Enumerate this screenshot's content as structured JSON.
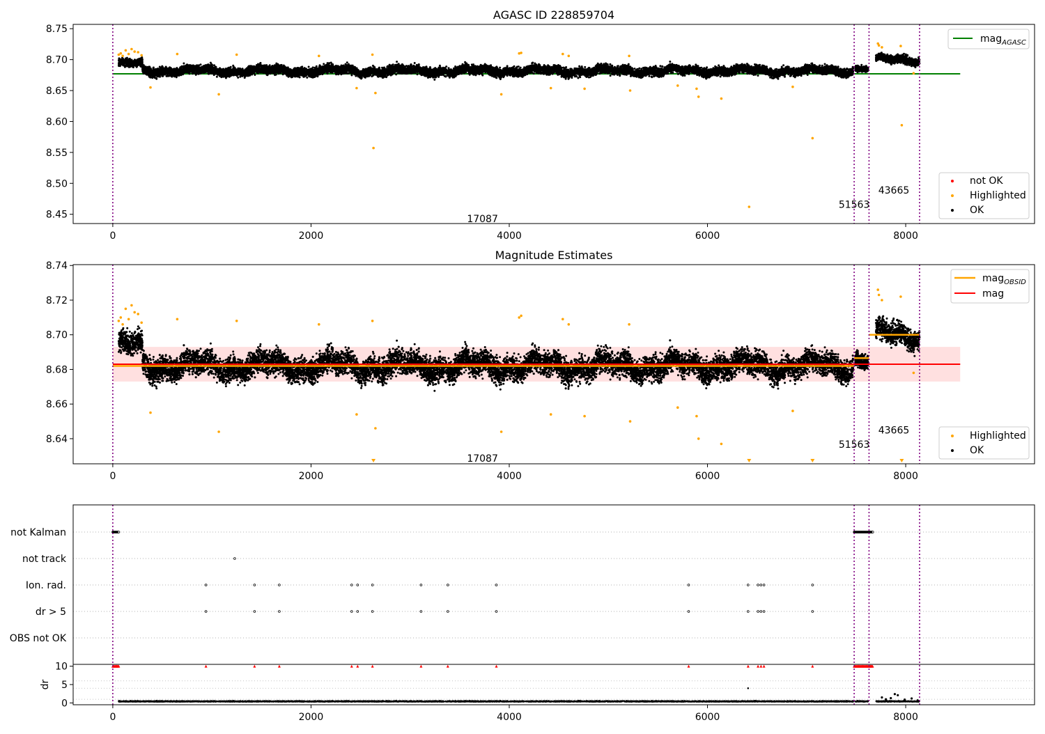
{
  "chart_data": [
    {
      "type": "scatter",
      "title": "AGASC ID 228859704",
      "xlim": [
        -400,
        9300
      ],
      "ylim": [
        8.435,
        8.757
      ],
      "x_ticks": [
        0,
        2000,
        4000,
        6000,
        8000
      ],
      "y_ticks": [
        8.45,
        8.5,
        8.55,
        8.6,
        8.65,
        8.7,
        8.75
      ],
      "y_tick_labels": [
        "8.45",
        "8.50",
        "8.55",
        "8.60",
        "8.65",
        "8.70",
        "8.75"
      ],
      "legend_upper": {
        "position": "upper right",
        "entries": [
          {
            "label": "mag",
            "subscript": "AGASC",
            "color": "#008000"
          }
        ]
      },
      "legend_lower": {
        "position": "lower right",
        "entries": [
          {
            "label": "not OK",
            "color": "#ff0000"
          },
          {
            "label": "Highlighted",
            "color": "#ffa500"
          },
          {
            "label": "OK",
            "color": "#000000"
          }
        ]
      },
      "reference_line": {
        "name": "mag AGASC",
        "y": 8.677,
        "x_range": [
          0,
          8550
        ],
        "color": "#008000"
      },
      "obsid_boundaries": [
        0,
        7480,
        7630,
        8140
      ],
      "obsid_labels": [
        {
          "text": "17087",
          "x": 3730,
          "y": 8.443
        },
        {
          "text": "51563",
          "x": 7480,
          "y": 8.466
        },
        {
          "text": "43665",
          "x": 7880,
          "y": 8.489
        }
      ],
      "ok_segments": [
        {
          "x_start": 60,
          "x_end": 300,
          "center": 8.693,
          "spread": 0.008
        },
        {
          "x_start": 300,
          "x_end": 7470,
          "center": 8.682,
          "spread": 0.009
        },
        {
          "x_start": 7490,
          "x_end": 7620,
          "center": 8.686,
          "spread": 0.006
        },
        {
          "x_start": 7700,
          "x_end": 8140,
          "center": 8.7,
          "spread": 0.008
        }
      ],
      "highlighted_points": [
        {
          "x": 60,
          "y": 8.708
        },
        {
          "x": 80,
          "y": 8.71
        },
        {
          "x": 100,
          "y": 8.706
        },
        {
          "x": 130,
          "y": 8.715
        },
        {
          "x": 160,
          "y": 8.709
        },
        {
          "x": 190,
          "y": 8.717
        },
        {
          "x": 220,
          "y": 8.713
        },
        {
          "x": 255,
          "y": 8.712
        },
        {
          "x": 290,
          "y": 8.707
        },
        {
          "x": 380,
          "y": 8.655
        },
        {
          "x": 650,
          "y": 8.709
        },
        {
          "x": 1070,
          "y": 8.644
        },
        {
          "x": 1250,
          "y": 8.708
        },
        {
          "x": 2080,
          "y": 8.706
        },
        {
          "x": 2460,
          "y": 8.654
        },
        {
          "x": 2620,
          "y": 8.708
        },
        {
          "x": 2630,
          "y": 8.557
        },
        {
          "x": 2650,
          "y": 8.646
        },
        {
          "x": 3920,
          "y": 8.644
        },
        {
          "x": 4100,
          "y": 8.71
        },
        {
          "x": 4120,
          "y": 8.711
        },
        {
          "x": 4420,
          "y": 8.654
        },
        {
          "x": 4540,
          "y": 8.709
        },
        {
          "x": 4600,
          "y": 8.706
        },
        {
          "x": 4760,
          "y": 8.653
        },
        {
          "x": 5210,
          "y": 8.706
        },
        {
          "x": 5220,
          "y": 8.65
        },
        {
          "x": 5700,
          "y": 8.658
        },
        {
          "x": 5890,
          "y": 8.653
        },
        {
          "x": 5910,
          "y": 8.64
        },
        {
          "x": 6140,
          "y": 8.637
        },
        {
          "x": 6420,
          "y": 8.462
        },
        {
          "x": 6860,
          "y": 8.656
        },
        {
          "x": 7060,
          "y": 8.573
        },
        {
          "x": 7720,
          "y": 8.726
        },
        {
          "x": 7730,
          "y": 8.723
        },
        {
          "x": 7760,
          "y": 8.72
        },
        {
          "x": 7950,
          "y": 8.722
        },
        {
          "x": 7960,
          "y": 8.594
        },
        {
          "x": 8080,
          "y": 8.678
        }
      ]
    },
    {
      "type": "scatter",
      "title": "Magnitude Estimates",
      "xlim": [
        -400,
        9300
      ],
      "ylim": [
        8.6255,
        8.7405
      ],
      "x_ticks": [
        0,
        2000,
        4000,
        6000,
        8000
      ],
      "y_ticks": [
        8.64,
        8.66,
        8.68,
        8.7,
        8.72,
        8.74
      ],
      "y_tick_labels": [
        "8.64",
        "8.66",
        "8.68",
        "8.70",
        "8.72",
        "8.74"
      ],
      "legend_upper": {
        "position": "upper right",
        "entries": [
          {
            "label": "mag",
            "subscript": "OBSID",
            "color": "#ffa500"
          },
          {
            "label": "mag",
            "color": "#ff0000"
          }
        ]
      },
      "legend_lower": {
        "position": "lower right",
        "entries": [
          {
            "label": "Highlighted",
            "color": "#ffa500"
          },
          {
            "label": "OK",
            "color": "#000000"
          }
        ]
      },
      "mag_line": {
        "y": 8.683,
        "band": [
          8.673,
          8.693
        ],
        "x_range": [
          0,
          8550
        ],
        "color": "#ff0000"
      },
      "obsid_mag_segments": [
        {
          "x_start": 0,
          "x_end": 7480,
          "y": 8.682
        },
        {
          "x_start": 7480,
          "x_end": 7630,
          "y": 8.6865
        },
        {
          "x_start": 7630,
          "x_end": 8140,
          "y": 8.7
        }
      ],
      "obsid_boundaries": [
        0,
        7480,
        7630,
        8140
      ],
      "obsid_labels": [
        {
          "text": "17087",
          "x": 3730,
          "y": 8.6287
        },
        {
          "text": "51563",
          "x": 7480,
          "y": 8.6368
        },
        {
          "text": "43665",
          "x": 7880,
          "y": 8.6451
        }
      ],
      "ok_segments": [
        {
          "x_start": 60,
          "x_end": 300,
          "center": 8.693,
          "spread": 0.008
        },
        {
          "x_start": 300,
          "x_end": 7470,
          "center": 8.682,
          "spread": 0.009
        },
        {
          "x_start": 7490,
          "x_end": 7620,
          "center": 8.686,
          "spread": 0.006
        },
        {
          "x_start": 7700,
          "x_end": 8140,
          "center": 8.7,
          "spread": 0.008
        }
      ],
      "highlighted_points": [
        {
          "x": 60,
          "y": 8.708
        },
        {
          "x": 80,
          "y": 8.71
        },
        {
          "x": 100,
          "y": 8.706
        },
        {
          "x": 130,
          "y": 8.715
        },
        {
          "x": 160,
          "y": 8.709
        },
        {
          "x": 190,
          "y": 8.717
        },
        {
          "x": 220,
          "y": 8.713
        },
        {
          "x": 255,
          "y": 8.712
        },
        {
          "x": 290,
          "y": 8.707
        },
        {
          "x": 380,
          "y": 8.655
        },
        {
          "x": 650,
          "y": 8.709
        },
        {
          "x": 1070,
          "y": 8.644
        },
        {
          "x": 1250,
          "y": 8.708
        },
        {
          "x": 2080,
          "y": 8.706
        },
        {
          "x": 2460,
          "y": 8.654
        },
        {
          "x": 2620,
          "y": 8.708
        },
        {
          "x": 2650,
          "y": 8.646
        },
        {
          "x": 3920,
          "y": 8.644
        },
        {
          "x": 4100,
          "y": 8.71
        },
        {
          "x": 4120,
          "y": 8.711
        },
        {
          "x": 4420,
          "y": 8.654
        },
        {
          "x": 4540,
          "y": 8.709
        },
        {
          "x": 4600,
          "y": 8.706
        },
        {
          "x": 4760,
          "y": 8.653
        },
        {
          "x": 5210,
          "y": 8.706
        },
        {
          "x": 5220,
          "y": 8.65
        },
        {
          "x": 5700,
          "y": 8.658
        },
        {
          "x": 5890,
          "y": 8.653
        },
        {
          "x": 5910,
          "y": 8.64
        },
        {
          "x": 6140,
          "y": 8.637
        },
        {
          "x": 6860,
          "y": 8.656
        },
        {
          "x": 7720,
          "y": 8.726
        },
        {
          "x": 7730,
          "y": 8.723
        },
        {
          "x": 7760,
          "y": 8.72
        },
        {
          "x": 7950,
          "y": 8.722
        },
        {
          "x": 8080,
          "y": 8.678
        }
      ],
      "offscale_markers": [
        2630,
        6420,
        7060,
        7960
      ]
    },
    {
      "type": "scatter",
      "title": "",
      "xlim": [
        -400,
        9300
      ],
      "x_ticks": [
        0,
        2000,
        4000,
        6000,
        8000
      ],
      "flag_rows": [
        "not Kalman",
        "not track",
        "Ion. rad.",
        "dr > 5",
        "OBS not OK"
      ],
      "flag_points": {
        "not Kalman": [
          {
            "x_start": 0,
            "x_end": 60
          },
          {
            "x_start": 7480,
            "x_end": 7670
          }
        ],
        "not track": [
          1230
        ],
        "Ion. rad.": [
          940,
          1430,
          1680,
          2410,
          2470,
          2620,
          3110,
          3380,
          3870,
          5810,
          6410,
          6510,
          6540,
          6570,
          7060
        ],
        "dr > 5": [
          940,
          1430,
          1680,
          2410,
          2470,
          2620,
          3110,
          3380,
          3870,
          5810,
          6410,
          6510,
          6540,
          6570,
          7060
        ]
      },
      "dr_panel": {
        "ylabel": "dr",
        "ylim": [
          -0.5,
          10.5
        ],
        "y_ticks": [
          0,
          5,
          10
        ],
        "y_tick_labels": [
          "0",
          "5",
          "10"
        ],
        "clipped_value": 10,
        "baseline": 0.35,
        "late_cluster": [
          {
            "x": 7760,
            "y": 1.5
          },
          {
            "x": 7800,
            "y": 1.0
          },
          {
            "x": 7850,
            "y": 1.3
          },
          {
            "x": 7890,
            "y": 2.4
          },
          {
            "x": 7920,
            "y": 2.1
          },
          {
            "x": 7990,
            "y": 0.9
          },
          {
            "x": 8060,
            "y": 1.2
          },
          {
            "x": 8120,
            "y": 0.7
          }
        ],
        "outlier": {
          "x": 6410,
          "y": 4.0
        }
      },
      "obsid_boundaries": [
        0,
        7480,
        7630,
        8140
      ]
    }
  ]
}
